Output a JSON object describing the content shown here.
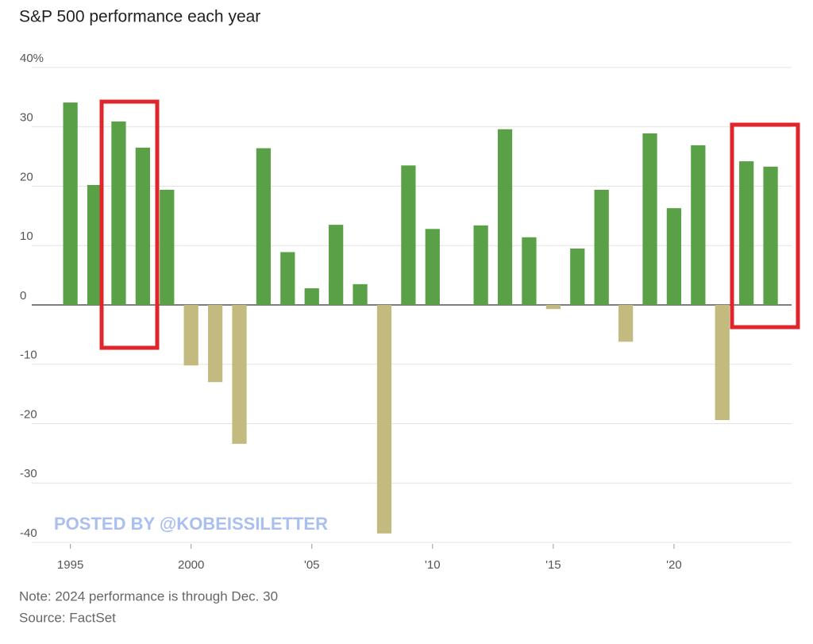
{
  "chart_data": {
    "type": "bar",
    "title": "S&P 500 performance each year",
    "x": [
      1995,
      1996,
      1997,
      1998,
      1999,
      2000,
      2001,
      2002,
      2003,
      2004,
      2005,
      2006,
      2007,
      2008,
      2009,
      2010,
      2011,
      2012,
      2013,
      2014,
      2015,
      2016,
      2017,
      2018,
      2019,
      2020,
      2021,
      2022,
      2023,
      2024
    ],
    "values": [
      34.1,
      20.2,
      30.9,
      26.5,
      19.4,
      -10.2,
      -13.0,
      -23.4,
      26.4,
      8.9,
      2.8,
      13.5,
      3.5,
      -38.5,
      23.5,
      12.8,
      0,
      13.4,
      29.6,
      11.4,
      -0.7,
      9.5,
      19.4,
      -6.2,
      28.9,
      16.3,
      26.9,
      -19.4,
      24.2,
      23.3
    ],
    "positive_color": "#5aa047",
    "negative_color": "#c2ba7e",
    "xlim": [
      1993.5,
      2025
    ],
    "xticks": [
      1995,
      2000,
      {
        "value": 2005,
        "label": "'05"
      },
      {
        "value": 2010,
        "label": "'10"
      },
      {
        "value": 2015,
        "label": "'15"
      },
      {
        "value": 2020,
        "label": "'20"
      }
    ],
    "ylim": [
      -40,
      40
    ],
    "yticks": [
      {
        "value": 40,
        "label": "40%"
      },
      30,
      20,
      10,
      0,
      -10,
      -20,
      -30,
      -40
    ],
    "grid": true,
    "watermark": "POSTED BY @KOBEISSILETTER",
    "note": "Note: 2024 performance is through Dec. 30",
    "source": "Source: FactSet"
  }
}
